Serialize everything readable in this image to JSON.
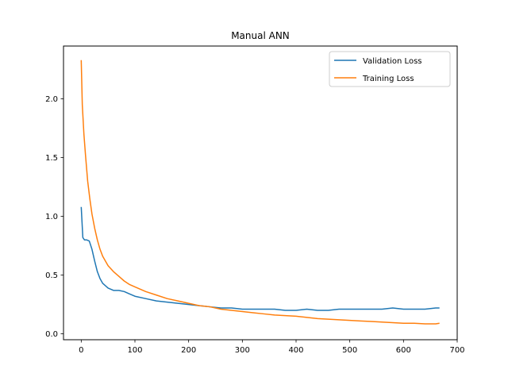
{
  "chart_data": {
    "type": "line",
    "title": "Manual ANN",
    "xlabel": "",
    "ylabel": "",
    "xlim": [
      -33,
      700
    ],
    "ylim": [
      -0.05,
      2.45
    ],
    "xticks": [
      0,
      100,
      200,
      300,
      400,
      500,
      600,
      700
    ],
    "yticks": [
      0.0,
      0.5,
      1.0,
      1.5,
      2.0
    ],
    "xtick_labels": [
      "0",
      "100",
      "200",
      "300",
      "400",
      "500",
      "600",
      "700"
    ],
    "ytick_labels": [
      "0.0",
      "0.5",
      "1.0",
      "1.5",
      "2.0"
    ],
    "legend_position": "top-right",
    "grid": false,
    "series": [
      {
        "name": "Validation Loss",
        "color": "#1f77b4",
        "x": [
          0,
          3,
          6,
          10,
          15,
          20,
          25,
          30,
          35,
          40,
          50,
          60,
          70,
          80,
          90,
          100,
          120,
          140,
          160,
          180,
          200,
          220,
          240,
          260,
          280,
          300,
          320,
          340,
          360,
          380,
          400,
          420,
          440,
          460,
          480,
          500,
          520,
          540,
          560,
          580,
          600,
          620,
          640,
          660,
          667
        ],
        "y": [
          1.08,
          0.82,
          0.8,
          0.8,
          0.79,
          0.72,
          0.62,
          0.53,
          0.47,
          0.43,
          0.39,
          0.37,
          0.37,
          0.36,
          0.34,
          0.32,
          0.3,
          0.28,
          0.27,
          0.26,
          0.25,
          0.24,
          0.23,
          0.22,
          0.22,
          0.21,
          0.21,
          0.21,
          0.21,
          0.2,
          0.2,
          0.21,
          0.2,
          0.2,
          0.21,
          0.21,
          0.21,
          0.21,
          0.21,
          0.22,
          0.21,
          0.21,
          0.21,
          0.22,
          0.22
        ]
      },
      {
        "name": "Training Loss",
        "color": "#ff7f0e",
        "x": [
          0,
          2,
          5,
          8,
          12,
          16,
          20,
          25,
          30,
          35,
          40,
          50,
          60,
          70,
          80,
          90,
          100,
          120,
          140,
          160,
          180,
          200,
          220,
          240,
          260,
          280,
          300,
          320,
          340,
          360,
          380,
          400,
          420,
          440,
          460,
          480,
          500,
          520,
          540,
          560,
          580,
          600,
          620,
          640,
          660,
          667
        ],
        "y": [
          2.33,
          1.95,
          1.7,
          1.52,
          1.3,
          1.15,
          1.02,
          0.9,
          0.8,
          0.72,
          0.66,
          0.58,
          0.53,
          0.49,
          0.45,
          0.42,
          0.4,
          0.36,
          0.33,
          0.3,
          0.28,
          0.26,
          0.24,
          0.23,
          0.21,
          0.2,
          0.19,
          0.18,
          0.17,
          0.16,
          0.155,
          0.15,
          0.14,
          0.13,
          0.125,
          0.12,
          0.115,
          0.11,
          0.105,
          0.1,
          0.095,
          0.09,
          0.09,
          0.085,
          0.085,
          0.09
        ]
      }
    ]
  }
}
